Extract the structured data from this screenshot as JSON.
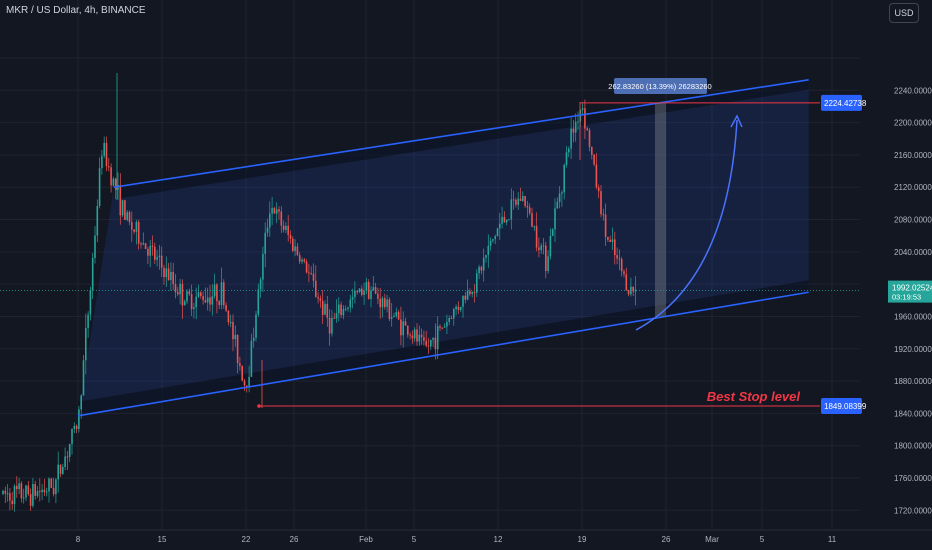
{
  "header": {
    "symbol_title": "MKR / US Dollar, 4h, BINANCE",
    "currency_label": "USD"
  },
  "price_axis": {
    "ticks": [
      "2240.00000",
      "2200.00000",
      "2160.00000",
      "2120.00000",
      "2080.00000",
      "2040.00000",
      "2000.00000",
      "1960.00000",
      "1920.00000",
      "1880.00000",
      "1840.00000",
      "1800.00000",
      "1760.00000",
      "1720.00000"
    ],
    "current_price": "1992.02524",
    "countdown": "03:19:53",
    "target_label": "2224.42738",
    "stop_label": "1849.08399"
  },
  "time_axis": {
    "labels": [
      "8",
      "15",
      "22",
      "26",
      "Feb",
      "5",
      "12",
      "19",
      "26",
      "Mar",
      "5",
      "11"
    ]
  },
  "annotations": {
    "measure_label": "262.83260 (13.39%) 26283260",
    "stop_text": "Best Stop level"
  },
  "colors": {
    "background": "#131722",
    "up_candle": "#26a69a",
    "down_candle": "#ef5350",
    "channel_line": "#2962ff",
    "target_line": "#f23645",
    "label_blue": "#2962ff",
    "current_price_bg": "#26a69a"
  },
  "chart_data": {
    "type": "candlestick",
    "symbol": "MKR / US Dollar",
    "interval": "4h",
    "exchange": "BINANCE",
    "ylim": [
      1710,
      2290
    ],
    "price_path": [
      {
        "x": "Jan 4",
        "y": 1740
      },
      {
        "x": "Jan 6",
        "y": 1750
      },
      {
        "x": "Jan 8",
        "y": 1830
      },
      {
        "x": "Jan 9",
        "y": 1990
      },
      {
        "x": "Jan 10",
        "y": 2170
      },
      {
        "x": "Jan 12",
        "y": 2080
      },
      {
        "x": "Jan 14",
        "y": 2040
      },
      {
        "x": "Jan 17",
        "y": 1980
      },
      {
        "x": "Jan 20",
        "y": 1990
      },
      {
        "x": "Jan 22",
        "y": 1870
      },
      {
        "x": "Jan 24",
        "y": 2100
      },
      {
        "x": "Jan 27",
        "y": 2020
      },
      {
        "x": "Jan 29",
        "y": 1950
      },
      {
        "x": "Feb 1",
        "y": 2000
      },
      {
        "x": "Feb 4",
        "y": 1950
      },
      {
        "x": "Feb 6",
        "y": 1920
      },
      {
        "x": "Feb 10",
        "y": 2000
      },
      {
        "x": "Feb 12",
        "y": 2070
      },
      {
        "x": "Feb 14",
        "y": 2110
      },
      {
        "x": "Feb 16",
        "y": 2030
      },
      {
        "x": "Feb 18",
        "y": 2180
      },
      {
        "x": "Feb 19",
        "y": 2224
      },
      {
        "x": "Feb 21",
        "y": 2060
      },
      {
        "x": "Feb 23",
        "y": 1992
      }
    ],
    "current_price": 1992.02524,
    "target_price": 2224.42738,
    "stop_price": 1849.08399,
    "measure": {
      "change": 262.8326,
      "percent": 13.39
    },
    "channel": {
      "upper": [
        {
          "x": "Jan 11",
          "y": 2120
        },
        {
          "x": "Mar 8",
          "y": 2253
        }
      ],
      "lower": [
        {
          "x": "Jan 8",
          "y": 1837
        },
        {
          "x": "Mar 8",
          "y": 1990
        }
      ]
    }
  }
}
